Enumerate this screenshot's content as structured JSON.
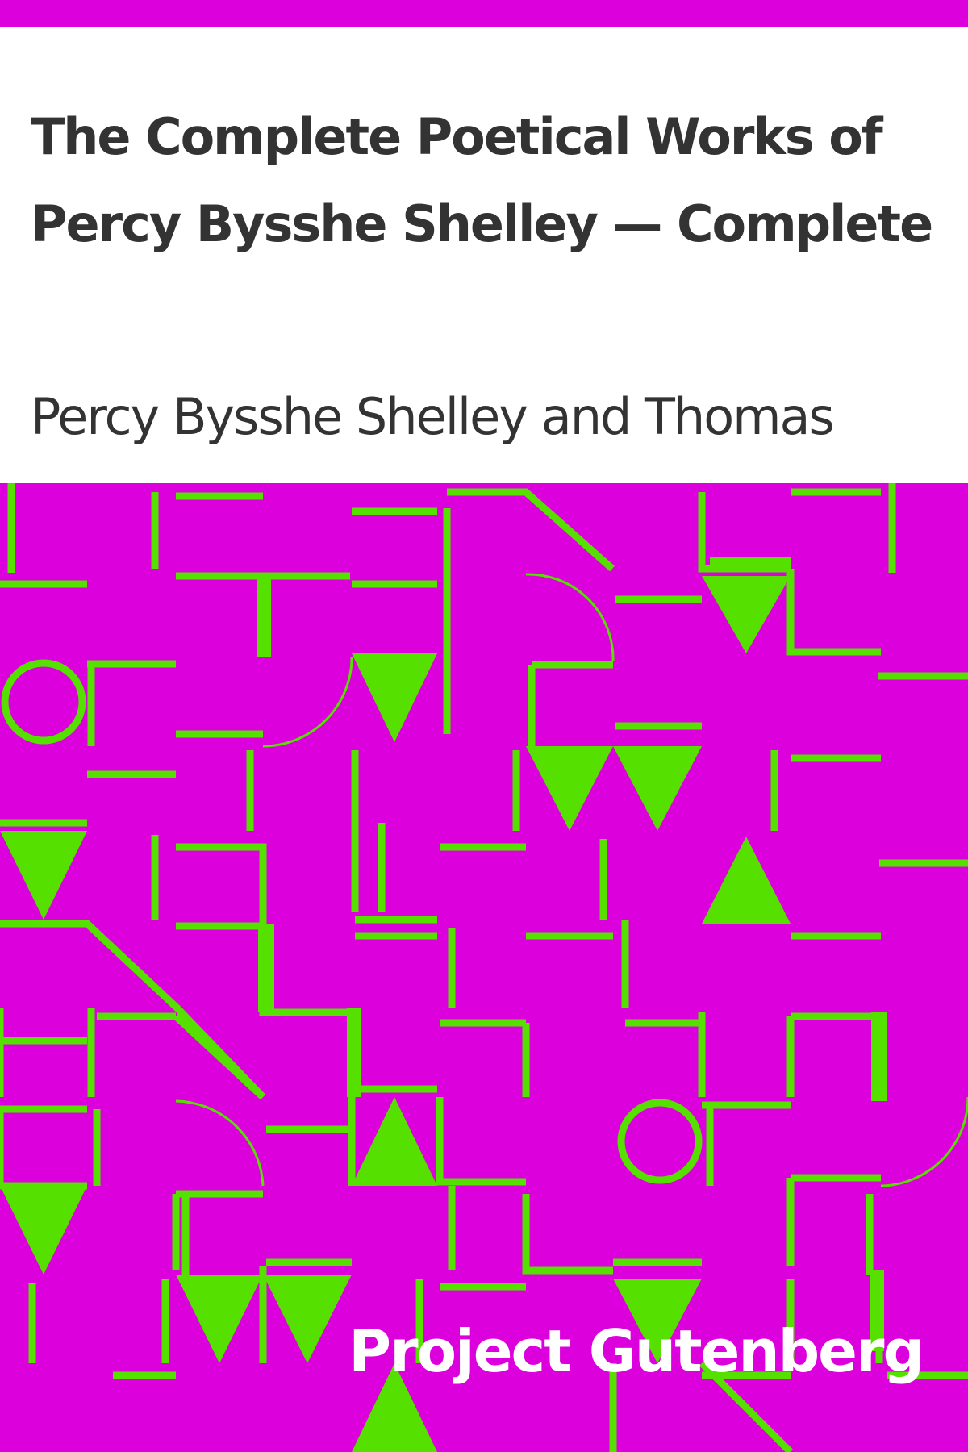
{
  "book": {
    "title": "The Complete Poetical Works of Percy Bysshe Shelley — Complete",
    "author": "Percy Bysshe Shelley and Thomas",
    "publisher": "Project Gutenberg"
  },
  "colors": {
    "background": "#dc00dc",
    "pattern": "#55e000",
    "panel": "#ffffff",
    "title_text": "#333333",
    "publisher_text": "#ffffff"
  }
}
